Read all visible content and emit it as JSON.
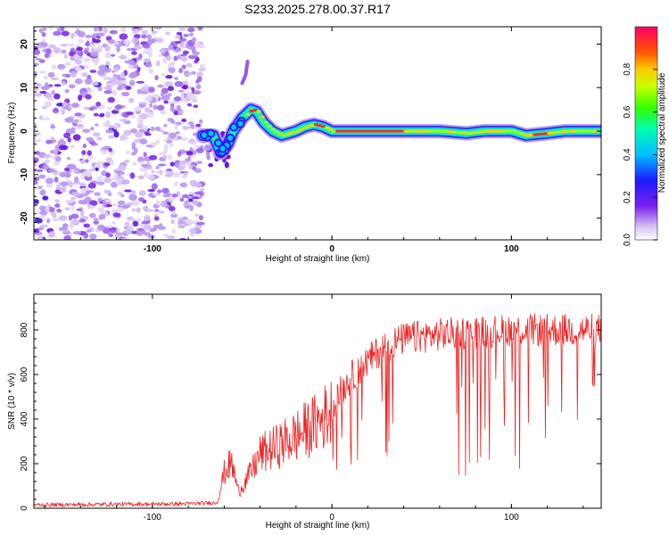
{
  "title": "S233.2025.278.00.37.R17",
  "chart_data": [
    {
      "type": "heatmap",
      "name": "spectrogram",
      "xlabel": "Height of straight line (km)",
      "ylabel": "Frequency (Hz)",
      "xlim": [
        -166,
        150
      ],
      "ylim": [
        -25,
        24
      ],
      "xticks": [
        -100,
        0,
        100
      ],
      "yticks": [
        -20,
        -10,
        0,
        10,
        20
      ],
      "noise_region_x": [
        -166,
        -72
      ],
      "ridge": {
        "x": [
          -72,
          -66,
          -62,
          -58,
          -55,
          -50,
          -45,
          -42,
          -38,
          -33,
          -28,
          -24,
          -20,
          -15,
          -10,
          -5,
          0,
          5,
          20,
          40,
          60,
          75,
          85,
          100,
          108,
          120,
          130,
          140,
          150
        ],
        "y": [
          -1,
          -1,
          -5,
          -3,
          0,
          3,
          5,
          4.5,
          2,
          0,
          -1,
          -0.5,
          0,
          1,
          1.5,
          1,
          0,
          0,
          0,
          0,
          0,
          -0.5,
          0,
          0,
          -1,
          -0.5,
          0,
          0,
          0
        ]
      },
      "colorbar": {
        "label": "Normalized spectral amplitude",
        "range": [
          0,
          1
        ],
        "ticks": [
          "0.0",
          "0.2",
          "0.4",
          "0.6",
          "0.8"
        ]
      }
    },
    {
      "type": "line",
      "name": "snr",
      "xlabel": "Height of straight line (km)",
      "ylabel": "SNR (10 * v/v)",
      "xlim": [
        -166,
        150
      ],
      "ylim": [
        0,
        960
      ],
      "xticks": [
        -100,
        0,
        100
      ],
      "yticks": [
        0,
        200,
        400,
        600,
        800
      ],
      "color": "#ee2222",
      "envelope": {
        "x": [
          -166,
          -80,
          -64,
          -60,
          -56,
          -52,
          -48,
          -44,
          -40,
          -30,
          -20,
          -10,
          0,
          10,
          20,
          30,
          40,
          60,
          80,
          100,
          120,
          140,
          150
        ],
        "y": [
          15,
          20,
          25,
          170,
          220,
          80,
          130,
          190,
          260,
          300,
          350,
          400,
          470,
          580,
          660,
          730,
          760,
          780,
          790,
          800,
          800,
          800,
          800
        ]
      }
    }
  ]
}
